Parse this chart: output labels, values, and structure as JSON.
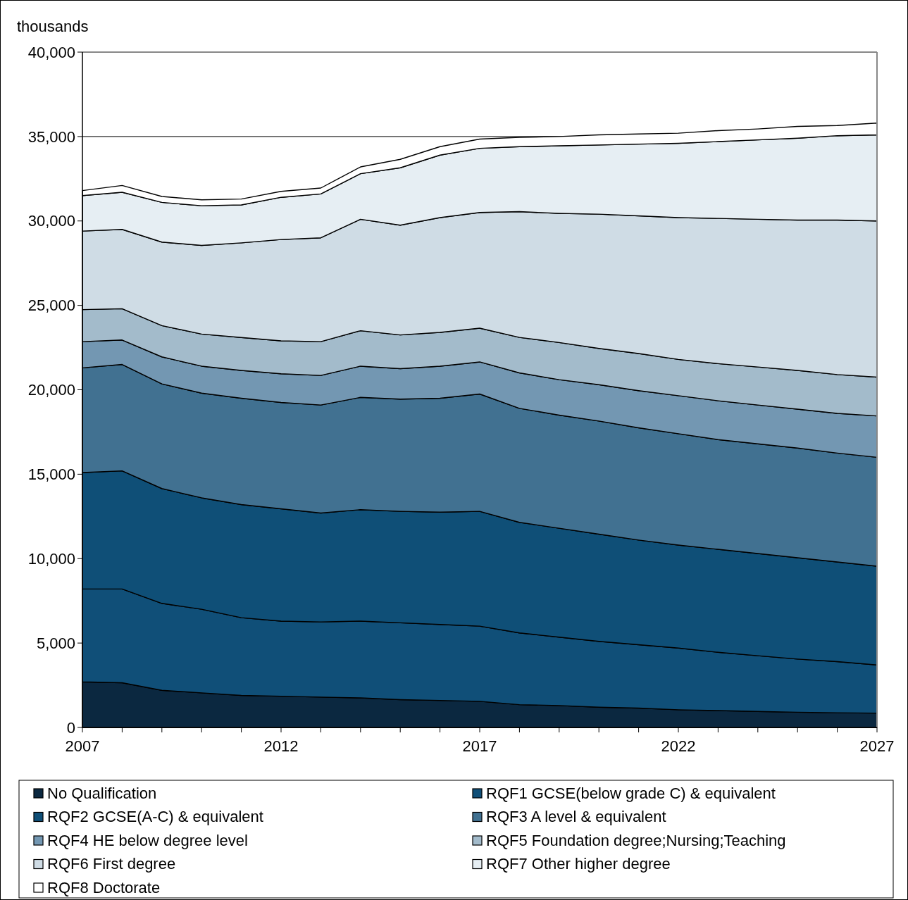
{
  "chart_data": {
    "type": "area",
    "stacked": true,
    "ylabel": "thousands",
    "x": [
      2007,
      2008,
      2009,
      2010,
      2011,
      2012,
      2013,
      2014,
      2015,
      2016,
      2017,
      2018,
      2019,
      2020,
      2021,
      2022,
      2023,
      2024,
      2025,
      2026,
      2027
    ],
    "xlim": [
      2007,
      2027
    ],
    "xticks": [
      2007,
      {
        "value": 2008,
        "label": null
      },
      {
        "value": 2009,
        "label": null
      },
      {
        "value": 2010,
        "label": null
      },
      {
        "value": 2011,
        "label": null
      },
      2012,
      {
        "value": 2013,
        "label": null
      },
      {
        "value": 2014,
        "label": null
      },
      {
        "value": 2015,
        "label": null
      },
      {
        "value": 2016,
        "label": null
      },
      2017,
      {
        "value": 2018,
        "label": null
      },
      {
        "value": 2019,
        "label": null
      },
      {
        "value": 2020,
        "label": null
      },
      {
        "value": 2021,
        "label": null
      },
      2022,
      {
        "value": 2023,
        "label": null
      },
      {
        "value": 2024,
        "label": null
      },
      {
        "value": 2025,
        "label": null
      },
      {
        "value": 2026,
        "label": null
      },
      2027
    ],
    "ylim": [
      0,
      40000
    ],
    "yticks": [
      {
        "value": 0,
        "label": "0"
      },
      {
        "value": 5000,
        "label": "5,000"
      },
      {
        "value": 10000,
        "label": "10,000"
      },
      {
        "value": 15000,
        "label": "15,000"
      },
      {
        "value": 20000,
        "label": "20,000"
      },
      {
        "value": 25000,
        "label": "25,000"
      },
      {
        "value": 30000,
        "label": "30,000"
      },
      {
        "value": 35000,
        "label": "35,000"
      },
      {
        "value": 40000,
        "label": "40,000"
      }
    ],
    "grid": "y",
    "legend": "bottom",
    "series": [
      {
        "name": "No Qualification",
        "color": "#0b2840",
        "values": [
          2700,
          2650,
          2200,
          2050,
          1900,
          1850,
          1800,
          1750,
          1650,
          1600,
          1550,
          1350,
          1300,
          1200,
          1150,
          1050,
          1000,
          950,
          900,
          870,
          850
        ]
      },
      {
        "name": "RQF1 GCSE(below grade C) & equivalent",
        "color": "#104f78",
        "values": [
          5500,
          5550,
          5150,
          4950,
          4600,
          4450,
          4450,
          4550,
          4550,
          4500,
          4450,
          4250,
          4050,
          3900,
          3750,
          3650,
          3450,
          3300,
          3150,
          3030,
          2850
        ]
      },
      {
        "name": "RQF2 GCSE(A-C) & equivalent",
        "color": "#0f4f77",
        "values": [
          6900,
          7000,
          6800,
          6600,
          6700,
          6650,
          6450,
          6600,
          6600,
          6650,
          6800,
          6550,
          6450,
          6350,
          6200,
          6100,
          6100,
          6050,
          6000,
          5900,
          5850
        ]
      },
      {
        "name": "RQF3 A level & equivalent",
        "color": "#417191",
        "values": [
          6200,
          6300,
          6200,
          6200,
          6300,
          6300,
          6400,
          6650,
          6650,
          6750,
          6950,
          6750,
          6700,
          6700,
          6650,
          6600,
          6500,
          6500,
          6500,
          6450,
          6450
        ]
      },
      {
        "name": "RQF4 HE below degree level",
        "color": "#7397b2",
        "values": [
          1550,
          1450,
          1600,
          1600,
          1650,
          1700,
          1750,
          1850,
          1800,
          1900,
          1900,
          2100,
          2100,
          2150,
          2200,
          2250,
          2300,
          2300,
          2300,
          2350,
          2450
        ]
      },
      {
        "name": "RQF5 Foundation degree;Nursing;Teaching",
        "color": "#a3bbcb",
        "values": [
          1900,
          1850,
          1850,
          1900,
          1950,
          1950,
          2000,
          2100,
          2000,
          2000,
          2000,
          2100,
          2200,
          2150,
          2200,
          2150,
          2200,
          2250,
          2300,
          2300,
          2300
        ]
      },
      {
        "name": "RQF6 First degree",
        "color": "#cfdce5",
        "values": [
          4650,
          4700,
          4950,
          5250,
          5600,
          6000,
          6150,
          6600,
          6500,
          6800,
          6850,
          7450,
          7650,
          7950,
          8150,
          8400,
          8600,
          8750,
          8900,
          9150,
          9250
        ]
      },
      {
        "name": "RQF7 Other higher degree",
        "color": "#e6eef3",
        "values": [
          2100,
          2200,
          2350,
          2350,
          2250,
          2500,
          2600,
          2700,
          3400,
          3700,
          3800,
          3850,
          4000,
          4100,
          4250,
          4400,
          4550,
          4700,
          4850,
          5000,
          5100
        ]
      },
      {
        "name": "RQF8 Doctorate",
        "color": "#ffffff",
        "values": [
          300,
          400,
          350,
          350,
          350,
          350,
          350,
          400,
          500,
          500,
          550,
          550,
          550,
          600,
          600,
          600,
          650,
          650,
          700,
          600,
          700
        ]
      }
    ]
  }
}
